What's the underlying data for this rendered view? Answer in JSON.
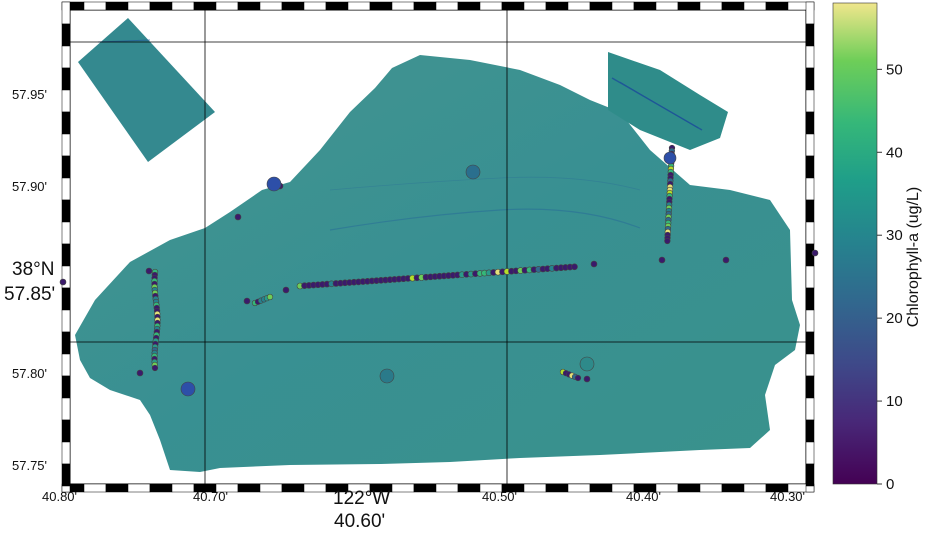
{
  "map": {
    "lon_ticks": [
      "40.80'",
      "40.70'",
      "40.60'",
      "40.50'",
      "40.40'",
      "40.30'"
    ],
    "lat_ticks": [
      "57.95'",
      "57.90'",
      "57.85'",
      "57.80'",
      "57.75'"
    ],
    "lon_degree_label": "122°W",
    "lat_degree_label": "38°N",
    "extent": {
      "lon_min": 40.8,
      "lon_max": 40.29,
      "lat_min": 57.735,
      "lat_max": 57.995
    }
  },
  "colorbar": {
    "title": "Chlorophyll-a (ug/L)",
    "ticks": [
      "0",
      "10",
      "20",
      "30",
      "40",
      "50"
    ],
    "range": [
      0,
      58
    ],
    "colormap": "viridis"
  },
  "colors": {
    "mosaic_fill": "#2f8f8f",
    "dark_marker": "#3b1a6b",
    "blue_marker": "#2d4fa8"
  }
}
